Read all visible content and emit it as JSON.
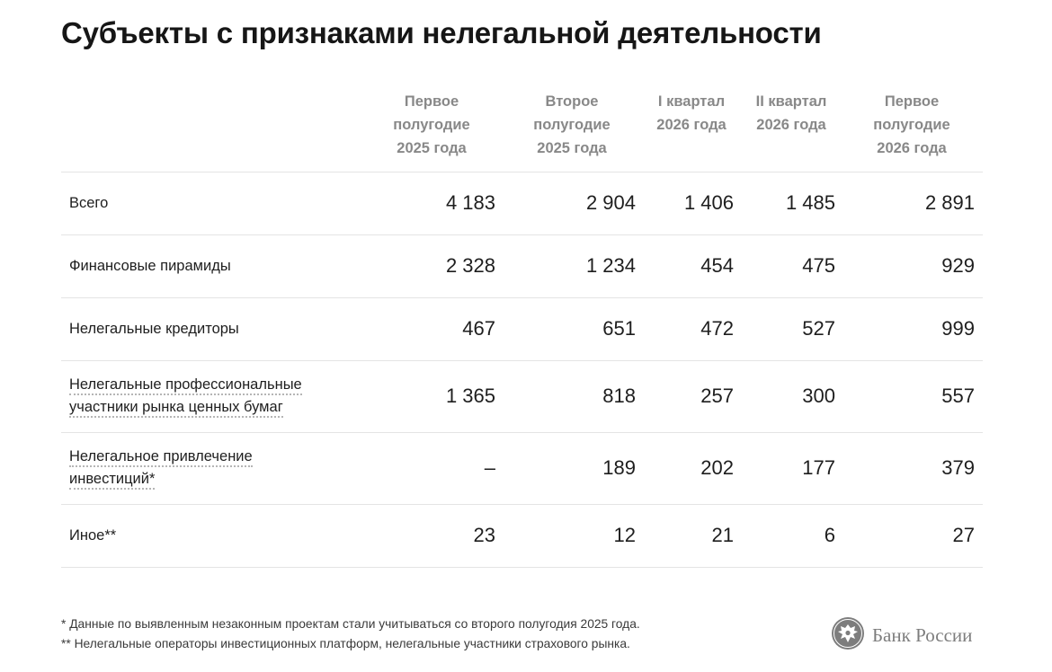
{
  "title": "Субъекты с признаками нелегальной деятельности",
  "columns": [
    "Первое\nполугодие\n2025 года",
    "Второе\nполугодие\n2025 года",
    "I квартал\n2026 года",
    "II квартал\n2026 года",
    "Первое\nполугодие\n2026 года"
  ],
  "rows": [
    {
      "label": "Всего",
      "values": [
        "4 183",
        "2 904",
        "1 406",
        "1 485",
        "2 891"
      ]
    },
    {
      "label": "Финансовые пирамиды",
      "values": [
        "2 328",
        "1 234",
        "454",
        "475",
        "929"
      ]
    },
    {
      "label": "Нелегальные кредиторы",
      "values": [
        "467",
        "651",
        "472",
        "527",
        "999"
      ]
    },
    {
      "label_line1": "Нелегальные профессиональные",
      "label_line2": "участники рынка ценных бумаг",
      "values": [
        "1 365",
        "818",
        "257",
        "300",
        "557"
      ]
    },
    {
      "label_line1": "Нелегальное привлечение",
      "label_line2": "инвестиций*",
      "values": [
        "–",
        "189",
        "202",
        "177",
        "379"
      ]
    },
    {
      "label": "Иное**",
      "values": [
        "23",
        "12",
        "21",
        "6",
        "27"
      ]
    }
  ],
  "footnotes": [
    "* Данные по выявленным незаконным проектам стали учитываться со второго полугодия 2025 года.",
    "** Нелегальные операторы инвестиционных платформ, нелегальные участники страхового рынка."
  ],
  "logo": {
    "name": "Банк России",
    "icon": "eagle-emblem-icon",
    "color": "#7d7d7d"
  }
}
